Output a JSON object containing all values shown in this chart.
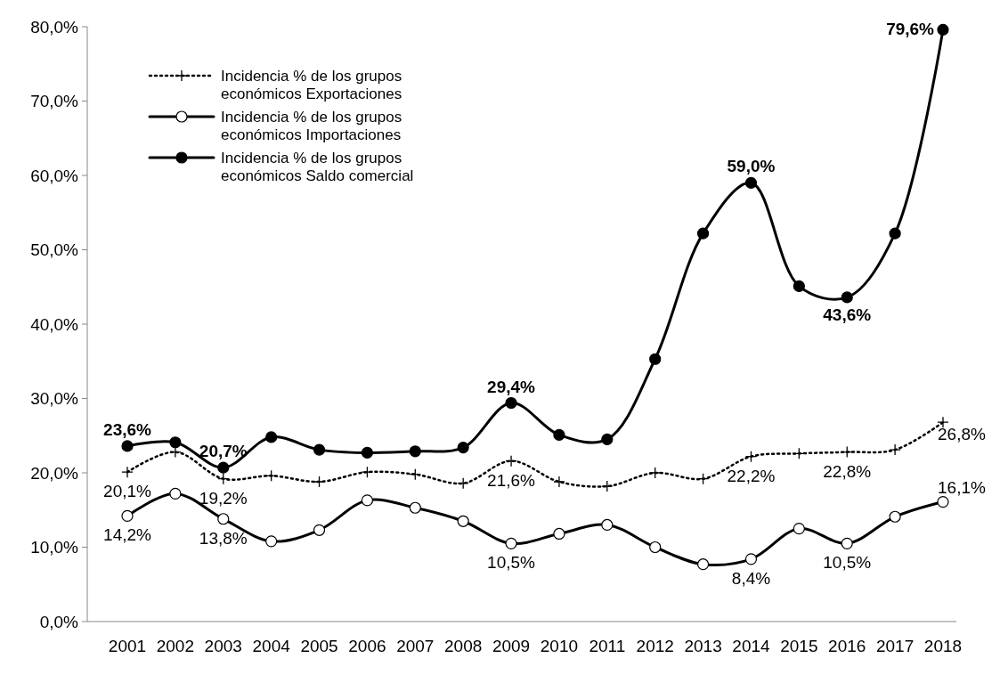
{
  "chart_data": {
    "type": "line",
    "categories": [
      "2001",
      "2002",
      "2003",
      "2004",
      "2005",
      "2006",
      "2007",
      "2008",
      "2009",
      "2010",
      "2011",
      "2012",
      "2013",
      "2014",
      "2015",
      "2016",
      "2017",
      "2018"
    ],
    "ylim": [
      0,
      80
    ],
    "yticks": [
      {
        "value": 0,
        "label": "0,0%"
      },
      {
        "value": 10,
        "label": "10,0%"
      },
      {
        "value": 20,
        "label": "20,0%"
      },
      {
        "value": 30,
        "label": "30,0%"
      },
      {
        "value": 40,
        "label": "40,0%"
      },
      {
        "value": 50,
        "label": "50,0%"
      },
      {
        "value": 60,
        "label": "60,0%"
      },
      {
        "value": 70,
        "label": "70,0%"
      },
      {
        "value": 80,
        "label": "80,0%"
      }
    ],
    "grid": false,
    "legend": "top left",
    "series": [
      {
        "name": "Incidencia % de los grupos económicos Exportaciones",
        "color": "#000000",
        "marker": "cross",
        "line_style": "dotted",
        "values": [
          20.1,
          22.8,
          19.2,
          19.6,
          18.8,
          20.1,
          19.8,
          18.6,
          21.6,
          18.8,
          18.2,
          20.0,
          19.2,
          22.2,
          22.6,
          22.8,
          23.1,
          26.8
        ],
        "value_labels": [
          "20,1%",
          null,
          "19,2%",
          null,
          null,
          null,
          null,
          null,
          "21,6%",
          null,
          null,
          null,
          null,
          "22,2%",
          null,
          "22,8%",
          null,
          "26,8%"
        ]
      },
      {
        "name": "Incidencia % de los grupos económicos Importaciones",
        "color": "#000000",
        "marker": "circle",
        "line_style": "solid",
        "values": [
          14.2,
          17.2,
          13.8,
          10.8,
          12.3,
          16.3,
          15.3,
          13.5,
          10.5,
          11.8,
          13.0,
          10.0,
          7.7,
          8.4,
          12.5,
          10.5,
          14.1,
          16.1
        ],
        "value_labels": [
          "14,2%",
          null,
          "13,8%",
          null,
          null,
          null,
          null,
          null,
          "10,5%",
          null,
          null,
          null,
          null,
          "8,4%",
          null,
          "10,5%",
          null,
          "16,1%"
        ]
      },
      {
        "name": "Incidencia % de los grupos económicos Saldo comercial",
        "color": "#000000",
        "marker": "circle",
        "line_style": "solid",
        "values": [
          23.6,
          24.1,
          20.7,
          24.8,
          23.1,
          22.7,
          22.9,
          23.4,
          29.4,
          25.1,
          24.5,
          35.3,
          52.2,
          59.0,
          45.1,
          43.6,
          52.2,
          79.6
        ],
        "value_labels": [
          "23,6%",
          null,
          "20,7%",
          null,
          null,
          null,
          null,
          null,
          "29,4%",
          null,
          null,
          null,
          null,
          "59,0%",
          null,
          "43,6%",
          null,
          "79,6%"
        ]
      }
    ]
  }
}
